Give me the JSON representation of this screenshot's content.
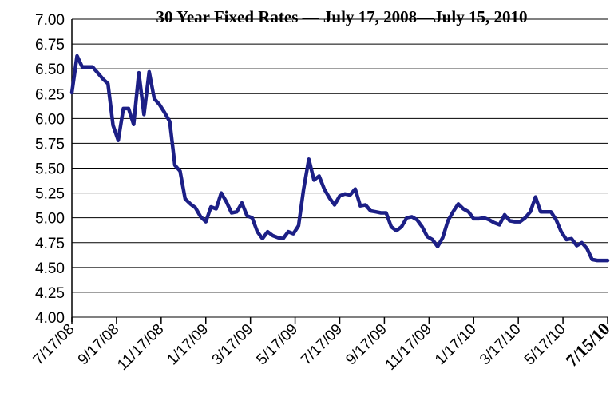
{
  "chart_data": {
    "type": "line",
    "title": "30 Year Fixed Rates — July 17, 2008—July 15, 2010",
    "xlabel": "",
    "ylabel": "",
    "ylim": [
      4.0,
      7.0
    ],
    "yticks": [
      "4.00",
      "4.25",
      "4.50",
      "4.75",
      "5.00",
      "5.25",
      "5.50",
      "5.75",
      "6.00",
      "6.25",
      "6.50",
      "6.75",
      "7.00"
    ],
    "xticks": [
      "7/17/08",
      "9/17/08",
      "11/17/08",
      "1/17/09",
      "3/17/09",
      "5/17/09",
      "7/17/09",
      "9/17/09",
      "11/17/09",
      "1/17/10",
      "3/17/10",
      "5/17/10",
      "7/15/10"
    ],
    "grid": true,
    "legend": "none",
    "line_color": "#1c1f86",
    "series": [
      {
        "x": [
          0,
          1,
          2,
          3,
          4,
          5,
          6,
          7,
          8,
          9,
          10,
          11,
          12,
          13,
          14,
          15,
          16,
          17,
          18,
          19,
          20,
          21,
          22,
          23,
          24,
          25,
          26,
          27,
          28,
          29,
          30,
          31,
          32,
          33,
          34,
          35,
          36,
          37,
          38,
          39,
          40,
          41,
          42,
          43,
          44,
          45,
          46,
          47,
          48,
          49,
          50,
          51,
          52,
          53,
          54,
          55,
          56,
          57,
          58,
          59,
          60,
          61,
          62,
          63,
          64,
          65,
          66,
          67,
          68,
          69,
          70,
          71,
          72,
          73,
          74,
          75,
          76,
          77,
          78,
          79,
          80,
          81,
          82,
          83,
          84,
          85,
          86,
          87,
          88,
          89,
          90,
          91,
          92,
          93,
          94,
          95,
          96,
          97,
          98,
          99,
          100,
          101,
          102,
          103,
          104
        ],
        "values": [
          6.26,
          6.63,
          6.52,
          6.52,
          6.52,
          6.46,
          6.4,
          6.35,
          5.93,
          5.78,
          6.1,
          6.1,
          5.94,
          6.46,
          6.04,
          6.47,
          6.2,
          6.14,
          6.06,
          5.97,
          5.53,
          5.47,
          5.19,
          5.14,
          5.1,
          5.01,
          4.96,
          5.11,
          5.09,
          5.25,
          5.16,
          5.05,
          5.06,
          5.15,
          5.02,
          5.0,
          4.86,
          4.79,
          4.86,
          4.82,
          4.8,
          4.79,
          4.86,
          4.84,
          4.92,
          5.29,
          5.59,
          5.38,
          5.42,
          5.29,
          5.2,
          5.13,
          5.22,
          5.24,
          5.23,
          5.29,
          5.12,
          5.13,
          5.07,
          5.06,
          5.05,
          5.05,
          4.91,
          4.87,
          4.91,
          5.0,
          5.01,
          4.98,
          4.91,
          4.81,
          4.78,
          4.71,
          4.8,
          4.97,
          5.06,
          5.14,
          5.09,
          5.06,
          4.99,
          4.99,
          5.0,
          4.98,
          4.95,
          4.93,
          5.03,
          4.97,
          4.96,
          4.96,
          5.0,
          5.06,
          5.21,
          5.06,
          5.06,
          5.06,
          4.98,
          4.86,
          4.78,
          4.79,
          4.72,
          4.75,
          4.69,
          4.58,
          4.57,
          4.57,
          4.57
        ]
      }
    ]
  }
}
